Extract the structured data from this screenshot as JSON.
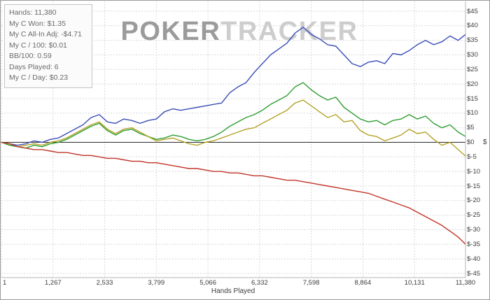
{
  "watermark": {
    "part1": "POKER",
    "part2": "TRACKER",
    "color1": "#9b9b9b",
    "color2": "#cdcdcd"
  },
  "stats_panel": {
    "lines": [
      "Hands: 11,380",
      "My C Won: $1.35",
      "My C All-In Adj: -$4.71",
      "My C / 100: $0.01",
      "BB/100: 0.59",
      "Days Played: 6",
      "My C / Day: $0.23"
    ]
  },
  "chart_data": {
    "type": "line",
    "title": "",
    "xlabel": "Hands Played",
    "ylabel": "$",
    "xlim": [
      1,
      11380
    ],
    "ylim": [
      -45,
      45
    ],
    "grid": true,
    "legend_position": "none",
    "grid_color": "#d8d8d8",
    "zero_line_color": "#2b2b2b",
    "x_ticks": {
      "values": [
        1,
        1267,
        2533,
        3799,
        5066,
        6332,
        7598,
        8864,
        10131,
        11380
      ],
      "labels": [
        "1",
        "1,267",
        "2,533",
        "3,799",
        "5,066",
        "6,332",
        "7,598",
        "8,864",
        "10,131",
        "11,380"
      ]
    },
    "y_ticks": {
      "values": [
        45,
        40,
        35,
        30,
        25,
        20,
        15,
        10,
        5,
        0,
        -5,
        -10,
        -15,
        -20,
        -25,
        -30,
        -35,
        -40,
        -45
      ],
      "labels": [
        "$45",
        "$40",
        "$35",
        "$30",
        "$25",
        "$20",
        "$15",
        "$10",
        "$5",
        "$0",
        "$-5",
        "$-10",
        "$-15",
        "$-20",
        "$-25",
        "$-30",
        "$-35",
        "$-40",
        "$-45"
      ]
    },
    "x": [
      1,
      200,
      400,
      600,
      800,
      1000,
      1200,
      1400,
      1600,
      1800,
      2000,
      2200,
      2400,
      2600,
      2800,
      3000,
      3200,
      3400,
      3600,
      3800,
      4000,
      4200,
      4400,
      4600,
      4800,
      5000,
      5200,
      5400,
      5600,
      5800,
      6000,
      6200,
      6400,
      6600,
      6800,
      7000,
      7200,
      7400,
      7600,
      7800,
      8000,
      8200,
      8400,
      8600,
      8800,
      9000,
      9200,
      9400,
      9600,
      9800,
      10000,
      10200,
      10400,
      10600,
      10800,
      11000,
      11200,
      11380
    ],
    "series": [
      {
        "name": "blue-line",
        "color": "#3a4db6",
        "values": [
          0,
          -0.5,
          -1,
          -0.5,
          0.5,
          0,
          1,
          1.5,
          3,
          4.5,
          6,
          8.5,
          9.5,
          7,
          6.5,
          8,
          7.5,
          6.5,
          7.5,
          8,
          10.5,
          11.5,
          11,
          11.5,
          12,
          12.5,
          13,
          13.5,
          17,
          19,
          20.5,
          24,
          27,
          30,
          32,
          34,
          37.5,
          39.5,
          37,
          35.5,
          33.5,
          33,
          30,
          27,
          26,
          27.5,
          28,
          27,
          30.5,
          30,
          31.5,
          33.5,
          35,
          33.5,
          34.5,
          36.5,
          35,
          37
        ]
      },
      {
        "name": "green-line",
        "color": "#2f9e32",
        "values": [
          0,
          -1,
          -1.5,
          -2,
          -1,
          -1.5,
          -0.5,
          0,
          1,
          2.5,
          4,
          5.5,
          6.5,
          4,
          2.5,
          4,
          4.5,
          3,
          2,
          1,
          1.5,
          2.5,
          2,
          1,
          0.5,
          1,
          2,
          3.5,
          5.5,
          7,
          8.5,
          9.5,
          11,
          13,
          14.5,
          16,
          19,
          20.5,
          18,
          16,
          14.5,
          15.5,
          12,
          10,
          8,
          7,
          7.5,
          6,
          7.5,
          8,
          9.5,
          8,
          9,
          6.5,
          5,
          6,
          3.5,
          2
        ]
      },
      {
        "name": "yellow-line",
        "color": "#b3a226",
        "values": [
          0,
          -0.5,
          -1.5,
          -1,
          -0.5,
          -1,
          0,
          0.5,
          1.5,
          3,
          4.5,
          6,
          7,
          4.5,
          3,
          4.5,
          5,
          3.5,
          2,
          0.5,
          1,
          1.5,
          0.5,
          -0.5,
          -1,
          0,
          0.5,
          1.5,
          2.5,
          3.5,
          4.5,
          5,
          6.5,
          8,
          9.5,
          11,
          13.5,
          14.5,
          12.5,
          10.5,
          8.5,
          9.5,
          7,
          7.5,
          4,
          2.5,
          2,
          0.5,
          1.5,
          2.5,
          4.5,
          3,
          3.5,
          1,
          -1,
          0,
          -2.5,
          -4.7
        ]
      },
      {
        "name": "red-line",
        "color": "#c13528",
        "values": [
          0,
          -0.5,
          -1.5,
          -2,
          -2.5,
          -2.5,
          -3,
          -3.5,
          -3.5,
          -4,
          -4.5,
          -4.5,
          -5,
          -5.5,
          -5.5,
          -6,
          -6.5,
          -6.5,
          -7,
          -7,
          -7.5,
          -8,
          -8.5,
          -9,
          -9,
          -9.5,
          -10,
          -10,
          -10.5,
          -10.5,
          -11,
          -11.5,
          -11.5,
          -12,
          -12.5,
          -13,
          -13,
          -13.5,
          -14,
          -14.5,
          -15,
          -15.5,
          -16,
          -16.5,
          -17,
          -17.5,
          -18.5,
          -19.5,
          -20.5,
          -21.5,
          -22.5,
          -24,
          -25.5,
          -27,
          -28.5,
          -30.5,
          -32.5,
          -35
        ]
      }
    ]
  }
}
